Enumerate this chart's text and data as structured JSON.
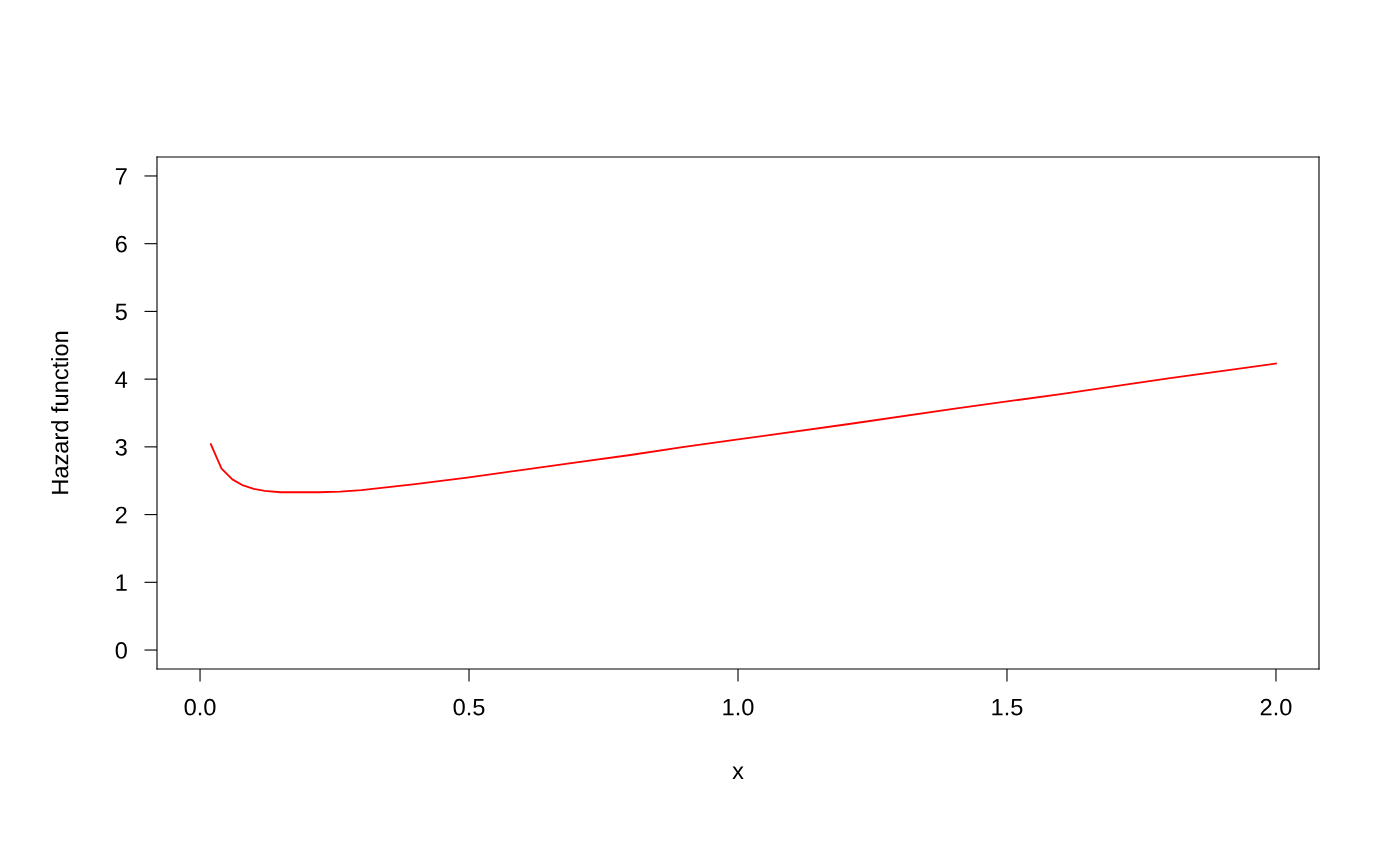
{
  "chart_data": {
    "type": "line",
    "xlabel": "x",
    "ylabel": "Hazard function",
    "series": [
      {
        "color": "#ff0000",
        "x": [
          0.02,
          0.04,
          0.06,
          0.08,
          0.1,
          0.12,
          0.15,
          0.18,
          0.22,
          0.26,
          0.3,
          0.4,
          0.5,
          0.6,
          0.7,
          0.8,
          0.9,
          1.0,
          1.2,
          1.4,
          1.6,
          1.8,
          2.0
        ],
        "values": [
          3.04,
          2.68,
          2.52,
          2.43,
          2.38,
          2.35,
          2.33,
          2.33,
          2.33,
          2.34,
          2.36,
          2.45,
          2.55,
          2.66,
          2.77,
          2.88,
          3.0,
          3.11,
          3.33,
          3.56,
          3.78,
          4.01,
          4.23
        ]
      }
    ],
    "xlim": [
      -0.08,
      2.08
    ],
    "ylim": [
      -0.28,
      7.28
    ],
    "xticks": [
      {
        "value": 0,
        "label": "0.0"
      },
      0.5,
      {
        "value": 1,
        "label": "1.0"
      },
      1.5,
      {
        "value": 2,
        "label": "2.0"
      }
    ],
    "yticks": [
      0,
      1,
      2,
      3,
      4,
      5,
      6,
      7
    ],
    "grid": false,
    "legend": false,
    "line_style": "solid",
    "marker": "none"
  }
}
